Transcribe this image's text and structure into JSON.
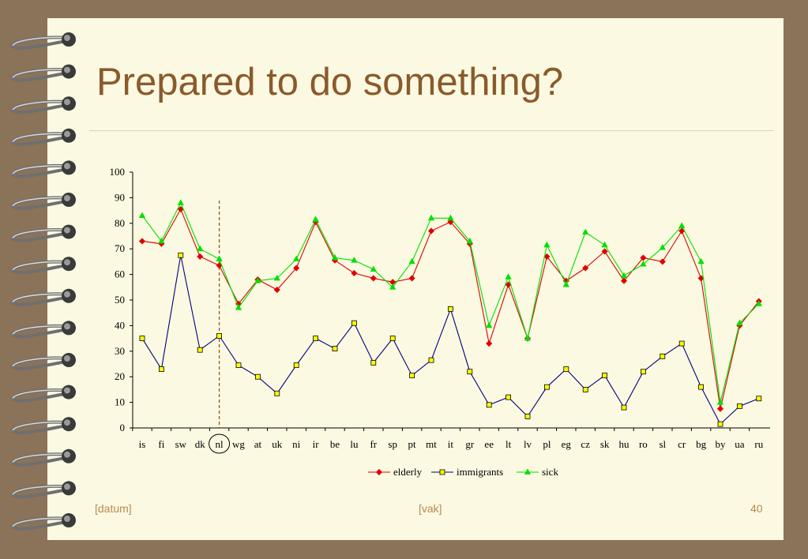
{
  "slide": {
    "title": "Prepared to do something?",
    "footer_date": "[datum]",
    "footer_course": "[vak]",
    "page_number": "40"
  },
  "colors": {
    "background": "#8b7359",
    "slide": "#fbf9e1",
    "title": "#8b5a2b",
    "elderly": "#e00000",
    "immigrants": "#000080",
    "immigrants_marker": "#ffff00",
    "sick": "#00e000"
  },
  "chart_data": {
    "type": "line",
    "categories": [
      "is",
      "fi",
      "sw",
      "dk",
      "nl",
      "wg",
      "at",
      "uk",
      "ni",
      "ir",
      "be",
      "lu",
      "fr",
      "sp",
      "pt",
      "mt",
      "it",
      "gr",
      "ee",
      "lt",
      "lv",
      "pl",
      "eg",
      "cz",
      "sk",
      "hu",
      "ro",
      "sl",
      "cr",
      "bg",
      "by",
      "ua",
      "ru"
    ],
    "highlighted_category": "nl",
    "ylim": [
      0,
      100
    ],
    "yticks": [
      0,
      10,
      20,
      30,
      40,
      50,
      60,
      70,
      80,
      90,
      100
    ],
    "grid": false,
    "legend_position": "bottom",
    "series": [
      {
        "name": "elderly",
        "marker": "diamond",
        "values": [
          73,
          72,
          85.5,
          67,
          63.5,
          48.5,
          58,
          54,
          62.5,
          80.5,
          65.5,
          60.5,
          58.5,
          57,
          58.5,
          77,
          80.5,
          72,
          33,
          56,
          35,
          67,
          57.5,
          62.5,
          69,
          57.5,
          66.5,
          65,
          77,
          58.5,
          7.5,
          40,
          49.5
        ]
      },
      {
        "name": "immigrants",
        "marker": "square",
        "values": [
          35,
          23,
          67.5,
          30.5,
          36,
          24.5,
          20,
          13.5,
          24.5,
          35,
          31,
          41,
          25.5,
          35,
          20.5,
          26.5,
          46.5,
          22,
          9,
          12,
          4.5,
          16,
          23,
          15,
          20.5,
          8,
          22,
          28,
          33,
          16,
          1.5,
          8.5,
          11.5
        ]
      },
      {
        "name": "sick",
        "marker": "triangle",
        "values": [
          83,
          73,
          88,
          70,
          66,
          47,
          57.5,
          58.5,
          66,
          81.5,
          66.5,
          65.5,
          62,
          55,
          65,
          82,
          82,
          73,
          40,
          59,
          35,
          71.5,
          56,
          76.5,
          71.5,
          59.5,
          64,
          70.5,
          79,
          65,
          10,
          41,
          48.5
        ]
      }
    ]
  }
}
